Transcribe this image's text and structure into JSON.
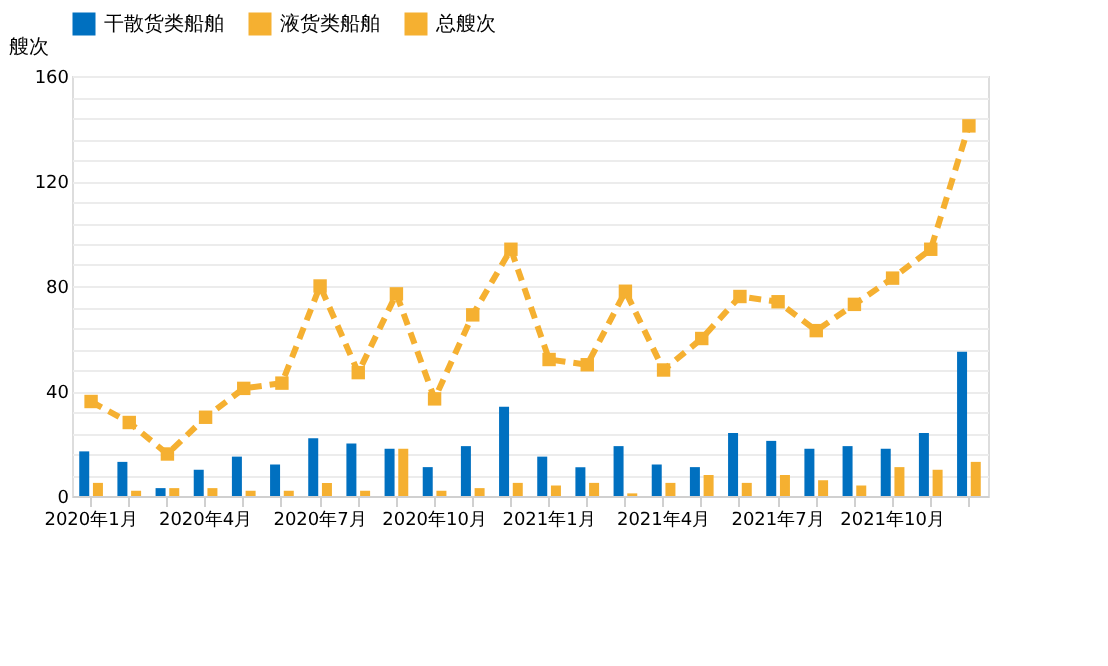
{
  "chart_data": {
    "type": "bar",
    "ylabel": "艘次",
    "categories": [
      "2020年1月",
      null,
      null,
      "2020年4月",
      null,
      null,
      "2020年7月",
      null,
      null,
      "2020年10月",
      null,
      null,
      "2021年1月",
      null,
      null,
      "2021年4月",
      null,
      null,
      "2021年7月",
      null,
      null,
      "2021年10月",
      null,
      null
    ],
    "series": [
      {
        "name": "干散货类船舶",
        "color": "#0070c0",
        "values": [
          17,
          13,
          3,
          10,
          15,
          12,
          22,
          20,
          18,
          11,
          19,
          34,
          15,
          11,
          19,
          12,
          11,
          24,
          21,
          18,
          19,
          18,
          24,
          55
        ]
      },
      {
        "name": "液货类船舶",
        "color": "#f5b031",
        "values": [
          5,
          2,
          3,
          3,
          2,
          2,
          5,
          2,
          18,
          2,
          3,
          5,
          4,
          5,
          1,
          5,
          8,
          5,
          8,
          6,
          4,
          11,
          10,
          13
        ]
      },
      {
        "name": "总艘次",
        "color": "#f5b031",
        "type": "line",
        "line_style": "dashed",
        "marker": "square",
        "values": [
          36,
          28,
          16,
          30,
          41,
          43,
          80,
          47,
          77,
          37,
          69,
          94,
          52,
          50,
          78,
          48,
          60,
          76,
          74,
          63,
          73,
          83,
          94,
          141
        ]
      }
    ],
    "ylim": [
      0,
      160
    ],
    "yticks": [
      0,
      {
        "value": 8,
        "label": null
      },
      {
        "value": 16,
        "label": null
      },
      {
        "value": 24,
        "label": null
      },
      {
        "value": 32,
        "label": null
      },
      40,
      {
        "value": 48,
        "label": null
      },
      {
        "value": 56,
        "label": null
      },
      {
        "value": 64,
        "label": null
      },
      {
        "value": 72,
        "label": null
      },
      80,
      {
        "value": 88,
        "label": null
      },
      {
        "value": 96,
        "label": null
      },
      {
        "value": 104,
        "label": null
      },
      {
        "value": 112,
        "label": null
      },
      120,
      {
        "value": 128,
        "label": null
      },
      {
        "value": 136,
        "label": null
      },
      {
        "value": 144,
        "label": null
      },
      {
        "value": 152,
        "label": null
      },
      160
    ],
    "grid": "y",
    "legend": "top"
  }
}
